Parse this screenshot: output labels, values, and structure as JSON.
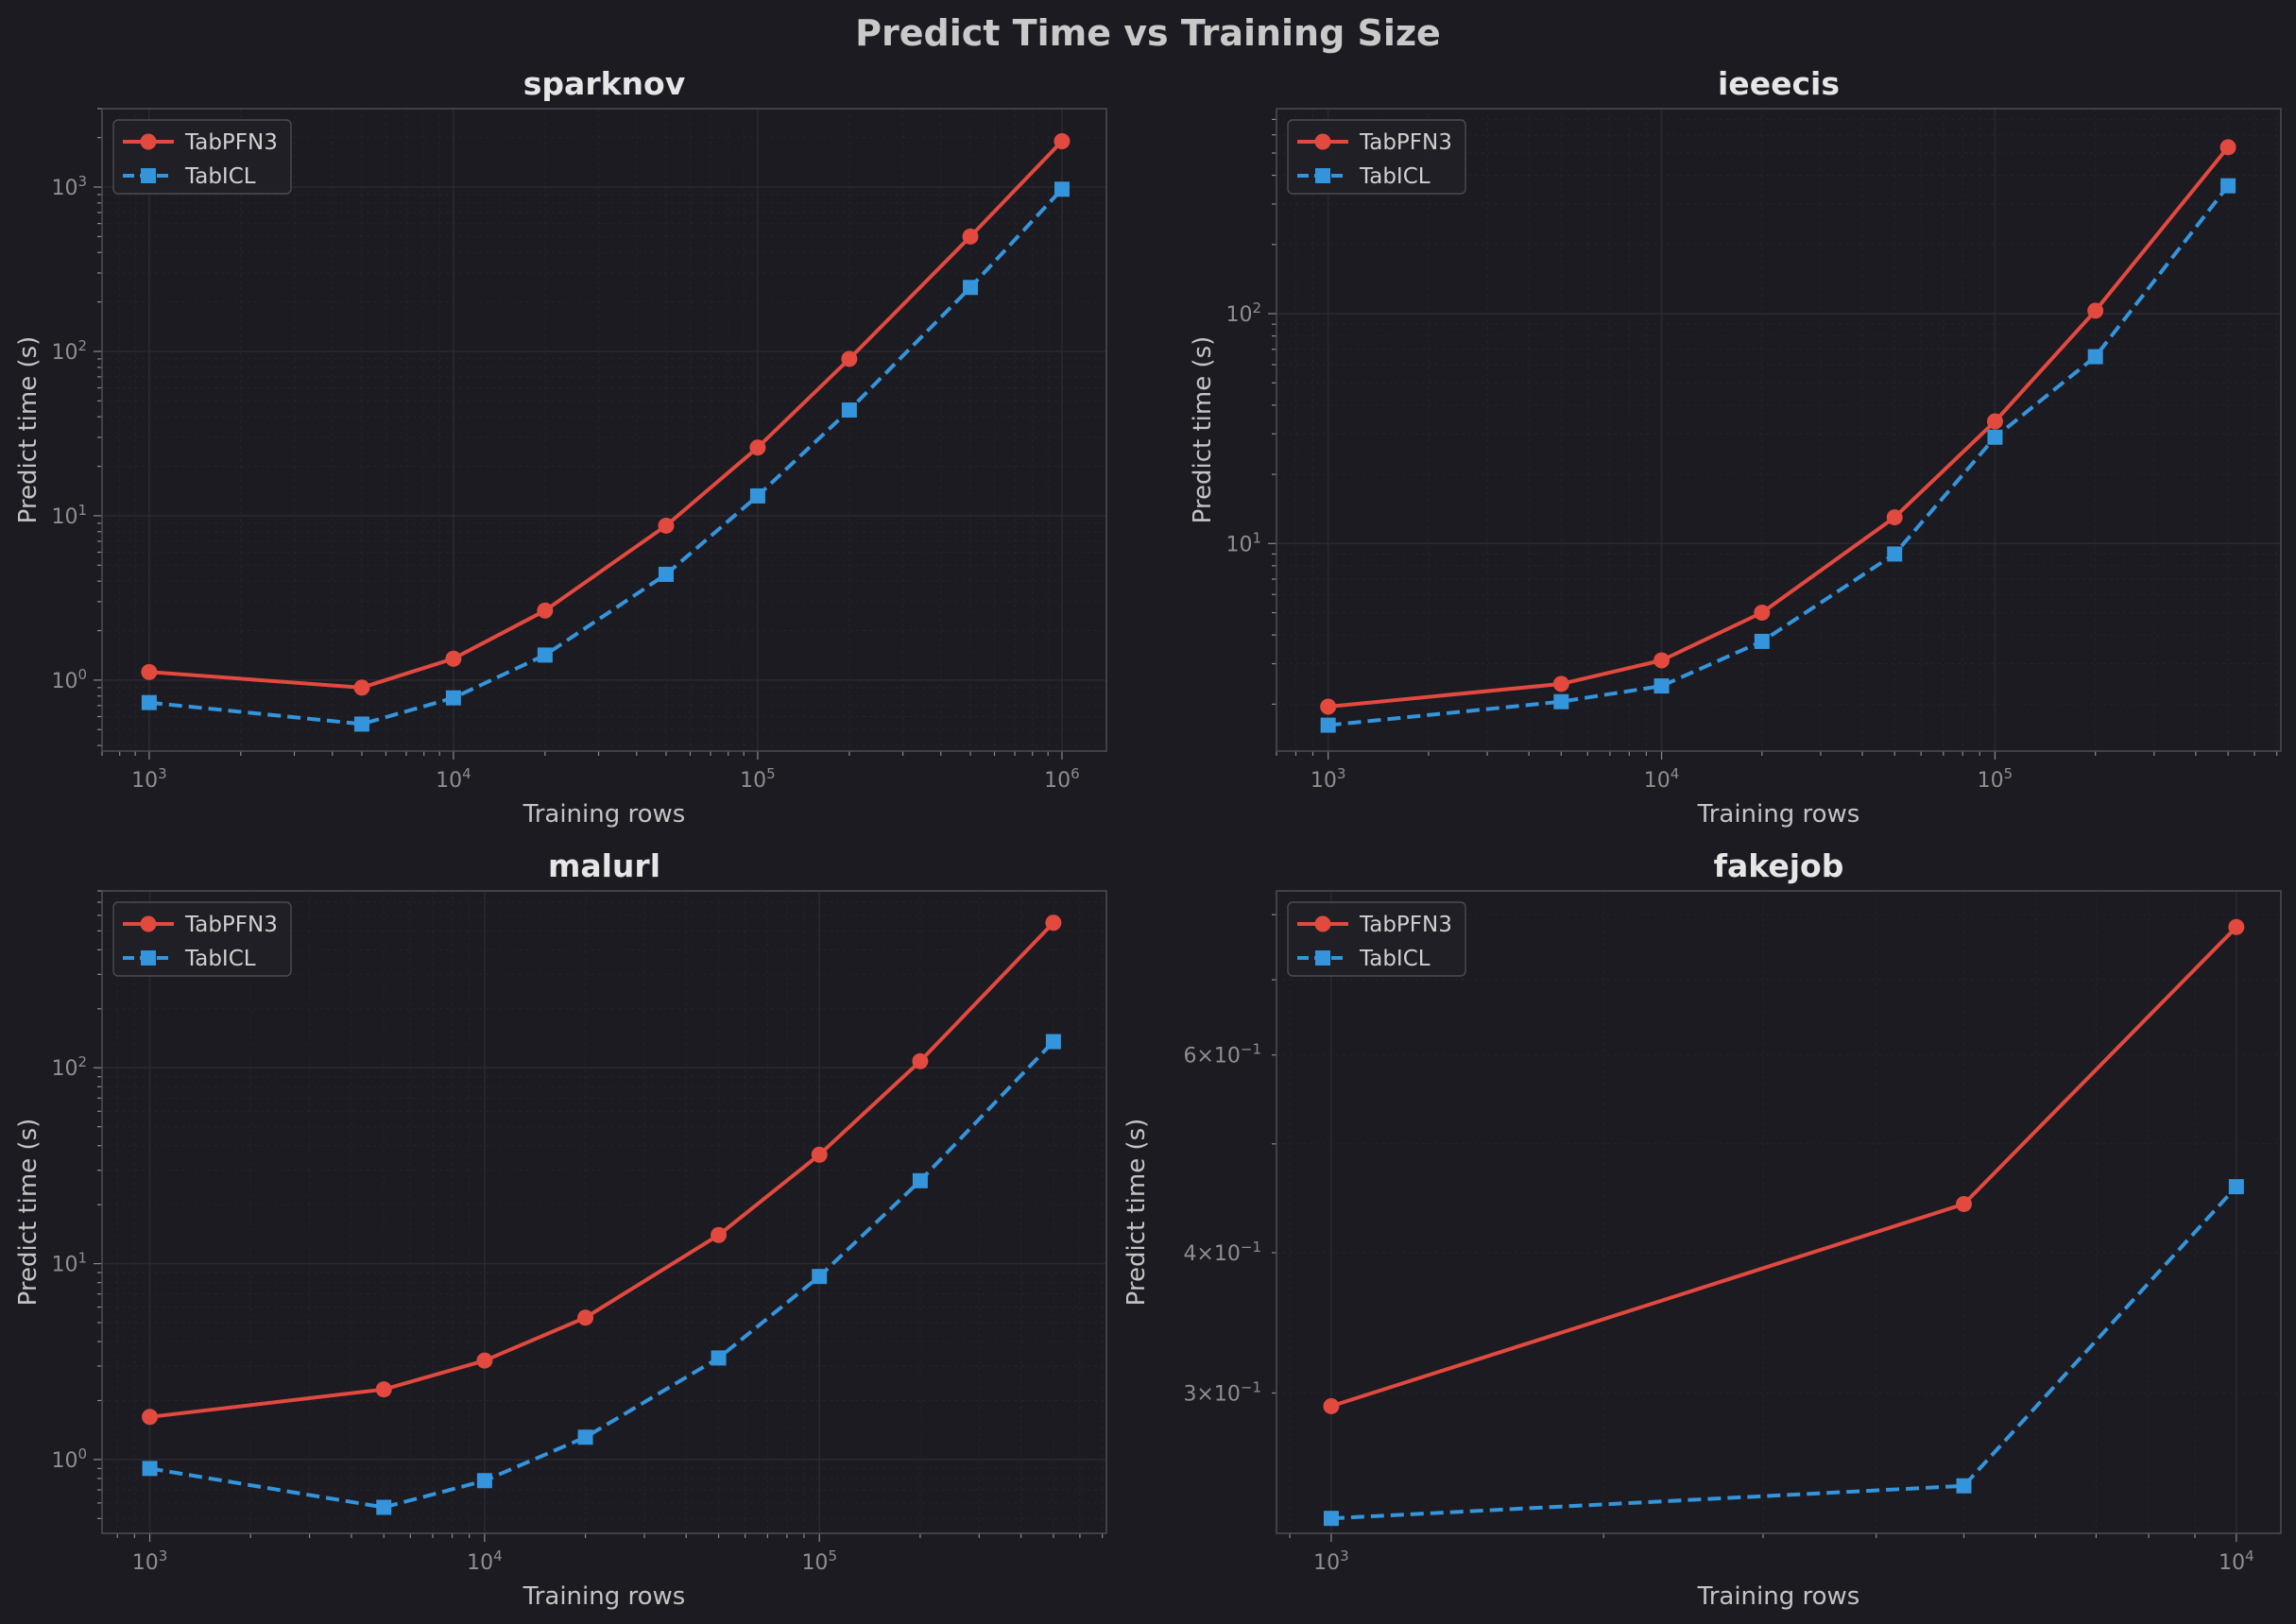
{
  "figure": {
    "title": "Predict Time vs Training Size"
  },
  "colors": {
    "background": "#1c1b21",
    "axes_bg": "#1c1b21",
    "grid": "#2a2a30",
    "spine": "#4a4a50",
    "tabpfn": "#e2493f",
    "tabicl": "#3494dc"
  },
  "chart_data": [
    {
      "type": "line",
      "title": "sparknov",
      "xlabel": "Training rows",
      "ylabel": "Predict time (s)",
      "xscale": "log",
      "yscale": "log",
      "xlim": [
        700,
        1400000
      ],
      "ylim": [
        0.37,
        3000
      ],
      "xticks": [
        "10^3",
        "10^4",
        "10^5",
        "10^6"
      ],
      "yticks": [
        "10^0",
        "10^1",
        "10^2",
        "10^3"
      ],
      "grid": true,
      "legend": "upper-left",
      "series": [
        {
          "name": "TabPFN3",
          "marker": "circle",
          "dash": "solid",
          "x": [
            1000,
            5000,
            10000,
            20000,
            50000,
            100000,
            200000,
            500000,
            1000000
          ],
          "y": [
            1.12,
            0.9,
            1.35,
            2.65,
            8.7,
            26,
            90,
            500,
            1900
          ]
        },
        {
          "name": "TabICL",
          "marker": "square",
          "dash": "dashed",
          "x": [
            1000,
            5000,
            10000,
            20000,
            50000,
            100000,
            200000,
            500000,
            1000000
          ],
          "y": [
            0.73,
            0.54,
            0.78,
            1.42,
            4.4,
            13.2,
            44,
            245,
            970
          ]
        }
      ]
    },
    {
      "type": "line",
      "title": "ieeecis",
      "xlabel": "Training rows",
      "ylabel": "Predict time (s)",
      "xscale": "log",
      "yscale": "log",
      "xlim": [
        700,
        720000
      ],
      "ylim": [
        1.25,
        780
      ],
      "xticks": [
        "10^3",
        "10^4",
        "10^5"
      ],
      "yticks": [
        "10^1",
        "10^2"
      ],
      "grid": true,
      "legend": "upper-left",
      "series": [
        {
          "name": "TabPFN3",
          "marker": "circle",
          "dash": "solid",
          "x": [
            1000,
            5000,
            10000,
            20000,
            50000,
            100000,
            200000,
            500000
          ],
          "y": [
            1.95,
            2.45,
            3.1,
            5.0,
            13,
            34,
            103,
            530
          ]
        },
        {
          "name": "TabICL",
          "marker": "square",
          "dash": "dashed",
          "x": [
            1000,
            5000,
            10000,
            20000,
            50000,
            100000,
            200000,
            500000
          ],
          "y": [
            1.62,
            2.05,
            2.4,
            3.75,
            9.0,
            29,
            65,
            360
          ]
        }
      ]
    },
    {
      "type": "line",
      "title": "malurl",
      "xlabel": "Training rows",
      "ylabel": "Predict time (s)",
      "xscale": "log",
      "yscale": "log",
      "xlim": [
        720,
        720000
      ],
      "ylim": [
        0.42,
        800
      ],
      "xticks": [
        "10^3",
        "10^4",
        "10^5"
      ],
      "yticks": [
        "10^0",
        "10^1",
        "10^2"
      ],
      "grid": true,
      "legend": "upper-left",
      "series": [
        {
          "name": "TabPFN3",
          "marker": "circle",
          "dash": "solid",
          "x": [
            1000,
            5000,
            10000,
            20000,
            50000,
            100000,
            200000,
            500000
          ],
          "y": [
            1.65,
            2.28,
            3.2,
            5.3,
            14,
            36,
            108,
            550
          ]
        },
        {
          "name": "TabICL",
          "marker": "square",
          "dash": "dashed",
          "x": [
            1000,
            5000,
            10000,
            20000,
            50000,
            100000,
            200000,
            500000
          ],
          "y": [
            0.9,
            0.57,
            0.78,
            1.3,
            3.3,
            8.6,
            26.5,
            136
          ]
        }
      ]
    },
    {
      "type": "line",
      "title": "fakejob",
      "xlabel": "Training rows",
      "ylabel": "Predict time (s)",
      "xscale": "log",
      "yscale": "log",
      "xlim": [
        870,
        11200
      ],
      "ylim": [
        0.225,
        0.84
      ],
      "xticks": [
        "10^3",
        "10^4"
      ],
      "yticks": [
        "3×10^-1",
        "4×10^-1",
        "6×10^-1"
      ],
      "grid": true,
      "legend": "upper-left",
      "series": [
        {
          "name": "TabPFN3",
          "marker": "circle",
          "dash": "solid",
          "x": [
            1000,
            5000,
            10000
          ],
          "y": [
            0.292,
            0.442,
            0.78
          ]
        },
        {
          "name": "TabICL",
          "marker": "square",
          "dash": "dashed",
          "x": [
            1000,
            5000,
            10000
          ],
          "y": [
            0.232,
            0.248,
            0.458
          ]
        }
      ]
    }
  ]
}
